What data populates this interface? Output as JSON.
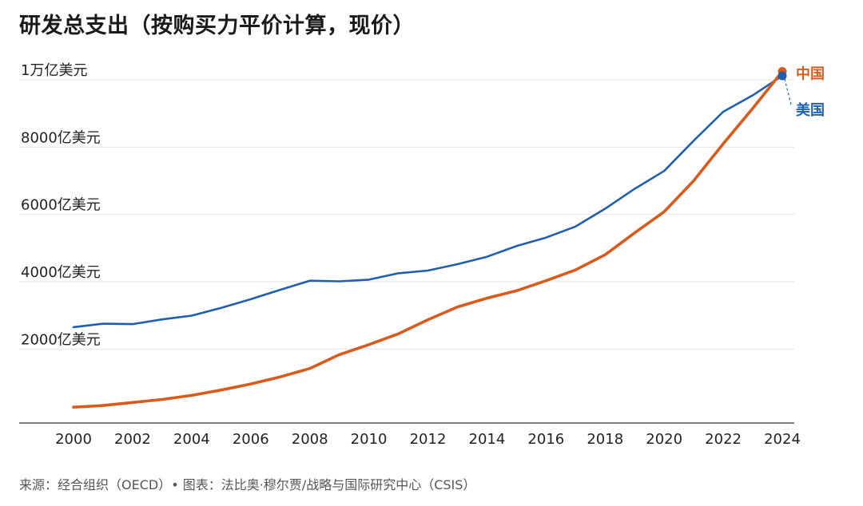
{
  "title": "研发总支出（按购买力平价计算，现价）",
  "source": "来源：经合组织（OECD）• 图表：法比奥·穆尔贾/战略与国际研究中心（CSIS）",
  "chart_data": {
    "type": "line",
    "title": "研发总支出（按购买力平价计算，现价）",
    "xlabel": "",
    "ylabel": "",
    "x": [
      2000,
      2001,
      2002,
      2003,
      2004,
      2005,
      2006,
      2007,
      2008,
      2009,
      2010,
      2011,
      2012,
      2013,
      2014,
      2015,
      2016,
      2017,
      2018,
      2019,
      2020,
      2021,
      2022,
      2023,
      2024
    ],
    "xlim": [
      1999.2,
      2024.9
    ],
    "ylim": [
      -200,
      10500
    ],
    "xticks": [
      2000,
      2002,
      2004,
      2006,
      2008,
      2010,
      2012,
      2014,
      2016,
      2018,
      2020,
      2022,
      2024
    ],
    "yticks": [
      {
        "value": 2000,
        "label": "2000亿美元"
      },
      {
        "value": 4000,
        "label": "4000亿美元"
      },
      {
        "value": 6000,
        "label": "6000亿美元"
      },
      {
        "value": 8000,
        "label": "8000亿美元"
      },
      {
        "value": 10000,
        "label": "1万亿美元"
      }
    ],
    "grid": true,
    "series": [
      {
        "name": "美国",
        "color": "#1f5fae",
        "values": [
          2650,
          2750,
          2740,
          2880,
          2990,
          3220,
          3480,
          3760,
          4030,
          4010,
          4060,
          4250,
          4330,
          4520,
          4740,
          5060,
          5310,
          5640,
          6170,
          6760,
          7290,
          8190,
          9050,
          9540,
          10120
        ]
      },
      {
        "name": "中国",
        "color": "#d95a1b",
        "values": [
          270,
          320,
          410,
          500,
          620,
          780,
          960,
          1170,
          1420,
          1830,
          2130,
          2450,
          2870,
          3250,
          3510,
          3730,
          4030,
          4350,
          4800,
          5450,
          6080,
          7000,
          8100,
          9150,
          10250
        ]
      }
    ]
  }
}
